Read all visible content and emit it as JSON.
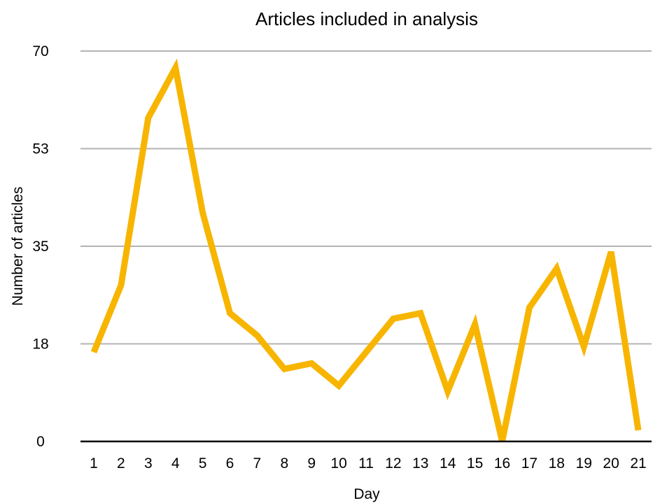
{
  "chart_data": {
    "type": "line",
    "title": "Articles included in analysis",
    "xlabel": "Day",
    "ylabel": "Number of articles",
    "categories": [
      "1",
      "2",
      "3",
      "4",
      "5",
      "6",
      "7",
      "8",
      "9",
      "10",
      "11",
      "12",
      "13",
      "14",
      "15",
      "16",
      "17",
      "18",
      "19",
      "20",
      "21"
    ],
    "y_ticks": [
      "0",
      "18",
      "35",
      "53",
      "70"
    ],
    "y_tick_values": [
      0,
      17.5,
      35,
      52.5,
      70
    ],
    "ylim": [
      0,
      70
    ],
    "grid": true,
    "legend": "none",
    "series": [
      {
        "values": [
          16,
          28,
          58,
          67,
          41,
          23,
          19,
          13,
          14,
          10,
          16,
          22,
          23,
          9,
          21,
          0,
          24,
          31,
          17,
          34,
          2
        ],
        "color": "#f7b500"
      }
    ]
  }
}
